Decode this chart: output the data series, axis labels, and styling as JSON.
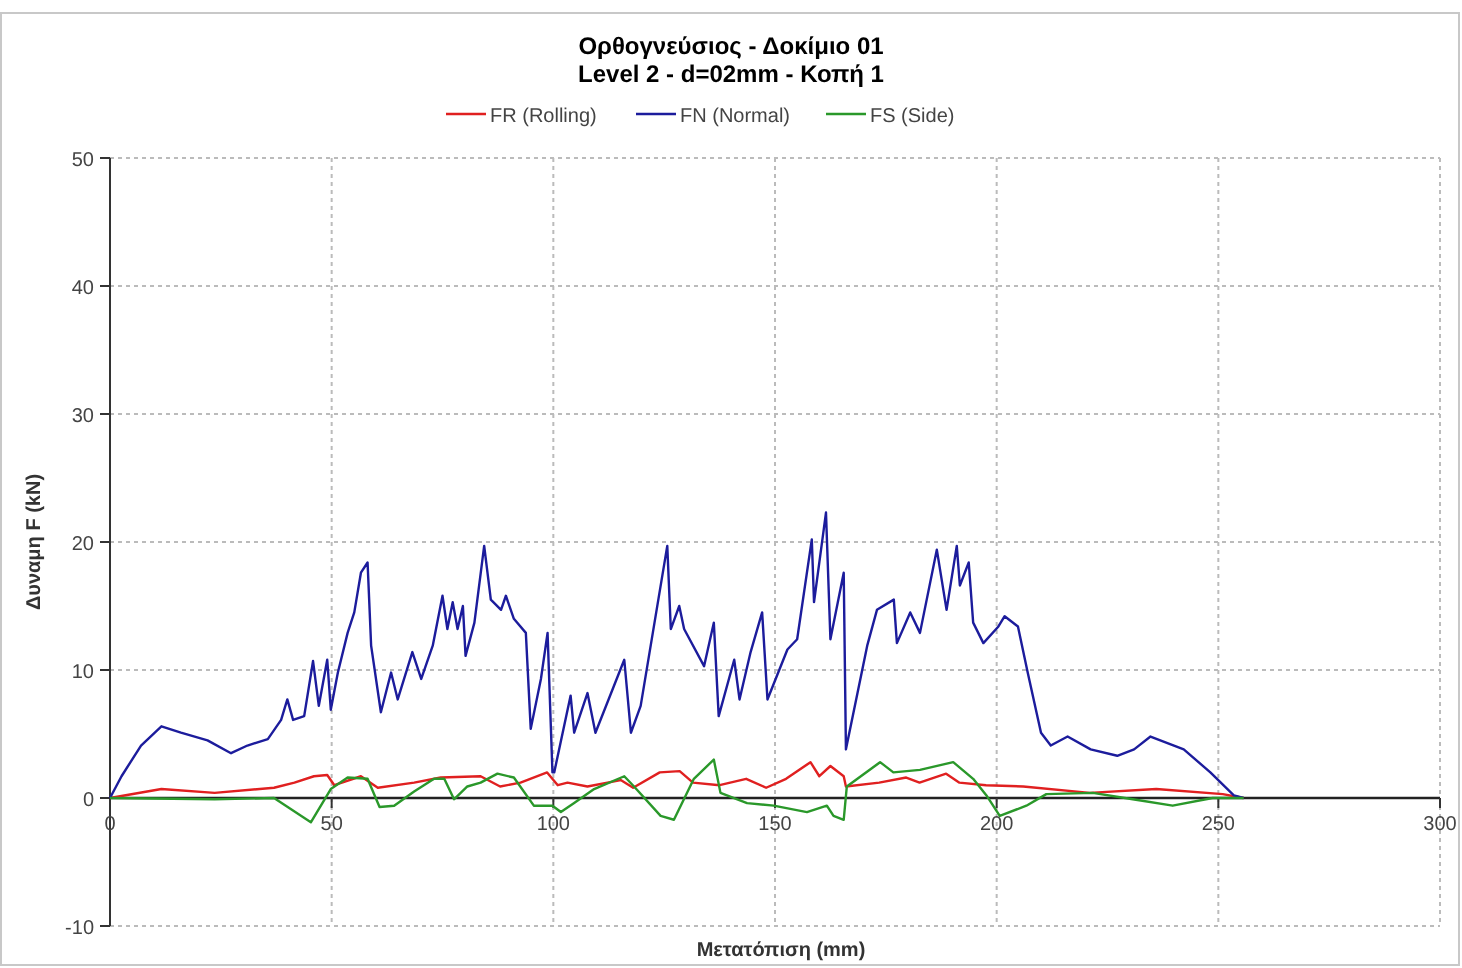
{
  "chart_data": {
    "type": "line",
    "title": "Ορθογνεύσιος - Δοκίμιο 01",
    "subtitle": "Level 2 - d=02mm - Κοπή 1",
    "xlabel": "Μετατόπιση (mm)",
    "ylabel": "Δυναμη F (kN)",
    "xlim": [
      0,
      300
    ],
    "xticks": [
      0,
      50,
      100,
      150,
      200,
      250,
      300
    ],
    "ylim": [
      -10,
      50
    ],
    "yticks": [
      -10,
      0,
      10,
      20,
      30,
      40,
      50
    ],
    "grid": true,
    "legend": "top",
    "marker": "none",
    "line_style": "solid",
    "series": [
      {
        "name": "FR (Rolling)",
        "color": "#e02020",
        "x": [
          0,
          11.6,
          23.6,
          37,
          41.6,
          46,
          49,
          50.6,
          56.6,
          60.4,
          68.6,
          74.6,
          83.6,
          88,
          92.6,
          98.6,
          101,
          103.2,
          107.7,
          115.2,
          118,
          124,
          128.5,
          131.5,
          137.5,
          143.5,
          148,
          152.5,
          158,
          160,
          162.5,
          165.5,
          166,
          173.5,
          179.6,
          182.6,
          188.6,
          191.6,
          197.6,
          206,
          221,
          236,
          251,
          255.7
        ],
        "values": [
          0,
          0.7,
          0.4,
          0.8,
          1.2,
          1.7,
          1.8,
          1,
          1.7,
          0.8,
          1.2,
          1.6,
          1.7,
          0.9,
          1.2,
          2,
          1,
          1.2,
          0.9,
          1.4,
          0.8,
          2,
          2.1,
          1.2,
          1,
          1.5,
          0.8,
          1.5,
          2.8,
          1.7,
          2.5,
          1.7,
          0.9,
          1.2,
          1.6,
          1.2,
          1.9,
          1.2,
          1,
          0.9,
          0.4,
          0.7,
          0.3,
          0
        ]
      },
      {
        "name": "FN (Normal)",
        "color": "#1c1c9c",
        "x": [
          0,
          2.6,
          7,
          11.6,
          16,
          22,
          27.3,
          31,
          35.6,
          38.6,
          40,
          41.3,
          43.8,
          45.8,
          47.1,
          49,
          49.8,
          51.4,
          53.6,
          55.1,
          56.6,
          58.1,
          58.9,
          61.1,
          63.4,
          64.9,
          68.2,
          70.2,
          72.8,
          75,
          76.1,
          77.3,
          78.4,
          79.6,
          80.2,
          82.2,
          84.4,
          85.9,
          88.2,
          89.3,
          91.1,
          93.8,
          94.9,
          97.2,
          98.7,
          99.8,
          100.2,
          103.9,
          104.7,
          107.7,
          109.5,
          116,
          117.5,
          119.7,
          125.7,
          126.5,
          128.4,
          129.5,
          134,
          136.2,
          137.3,
          140.8,
          142,
          144.5,
          147.1,
          148.3,
          152.8,
          155,
          158.3,
          158.8,
          161.5,
          162.5,
          165.5,
          166,
          170.8,
          173,
          176.8,
          177.5,
          180.5,
          182.7,
          186.5,
          188.7,
          191,
          191.7,
          193.7,
          194.7,
          197,
          200.4,
          201.8,
          204.8,
          207,
          210,
          212.2,
          216,
          221.2,
          227.2,
          231,
          234.7,
          242.2,
          248.2,
          253.5,
          255.7
        ],
        "values": [
          0,
          1.7,
          4.1,
          5.6,
          5.1,
          4.5,
          3.5,
          4.1,
          4.6,
          6.1,
          7.7,
          6.1,
          6.4,
          10.7,
          7.2,
          10.8,
          6.9,
          9.8,
          12.9,
          14.5,
          17.6,
          18.4,
          11.9,
          6.7,
          9.8,
          7.7,
          11.4,
          9.3,
          11.9,
          15.8,
          13.2,
          15.3,
          13.2,
          15,
          11.1,
          13.7,
          19.7,
          15.5,
          14.7,
          15.8,
          14,
          12.9,
          5.4,
          9.3,
          12.9,
          2,
          2,
          8,
          5.1,
          8.2,
          5.1,
          10.8,
          5.1,
          7.2,
          19.7,
          13.2,
          15,
          13.2,
          10.3,
          13.7,
          6.4,
          10.8,
          7.7,
          11.4,
          14.5,
          7.7,
          11.6,
          12.4,
          20.2,
          15.3,
          22.3,
          12.4,
          17.6,
          3.8,
          11.9,
          14.7,
          15.5,
          12.1,
          14.5,
          12.9,
          19.4,
          14.7,
          19.7,
          16.6,
          18.4,
          13.7,
          12.1,
          13.4,
          14.2,
          13.4,
          9.8,
          5.1,
          4.1,
          4.8,
          3.8,
          3.3,
          3.8,
          4.8,
          3.8,
          2,
          0.2,
          0
        ]
      },
      {
        "name": "FS (Side)",
        "color": "#2a982a",
        "x": [
          0,
          23.6,
          37,
          45.3,
          49.8,
          53.6,
          58.1,
          60.8,
          64.1,
          68.6,
          73.1,
          75.4,
          77.6,
          80.6,
          83.6,
          87.4,
          91.1,
          95.6,
          99.8,
          101.7,
          104.7,
          109.2,
          116,
          118.2,
          124.2,
          127.2,
          131.7,
          136.2,
          137.7,
          143.7,
          149.7,
          157.2,
          161.7,
          163.2,
          165.5,
          166.2,
          173.7,
          176.7,
          182.7,
          190.2,
          194.7,
          197.7,
          200.7,
          206.7,
          211.2,
          221.7,
          230.7,
          239.7,
          248.7,
          255.7
        ],
        "values": [
          0,
          -0.1,
          0,
          -1.9,
          0.7,
          1.6,
          1.5,
          -0.7,
          -0.6,
          0.5,
          1.5,
          1.5,
          -0.1,
          0.9,
          1.2,
          1.9,
          1.6,
          -0.6,
          -0.6,
          -1.1,
          -0.4,
          0.7,
          1.7,
          0.9,
          -1.4,
          -1.7,
          1.5,
          3,
          0.4,
          -0.4,
          -0.6,
          -1.1,
          -0.6,
          -1.4,
          -1.7,
          0.9,
          2.8,
          2,
          2.2,
          2.8,
          1.5,
          0.2,
          -1.4,
          -0.6,
          0.3,
          0.4,
          -0.1,
          -0.6,
          0,
          0
        ]
      }
    ]
  }
}
